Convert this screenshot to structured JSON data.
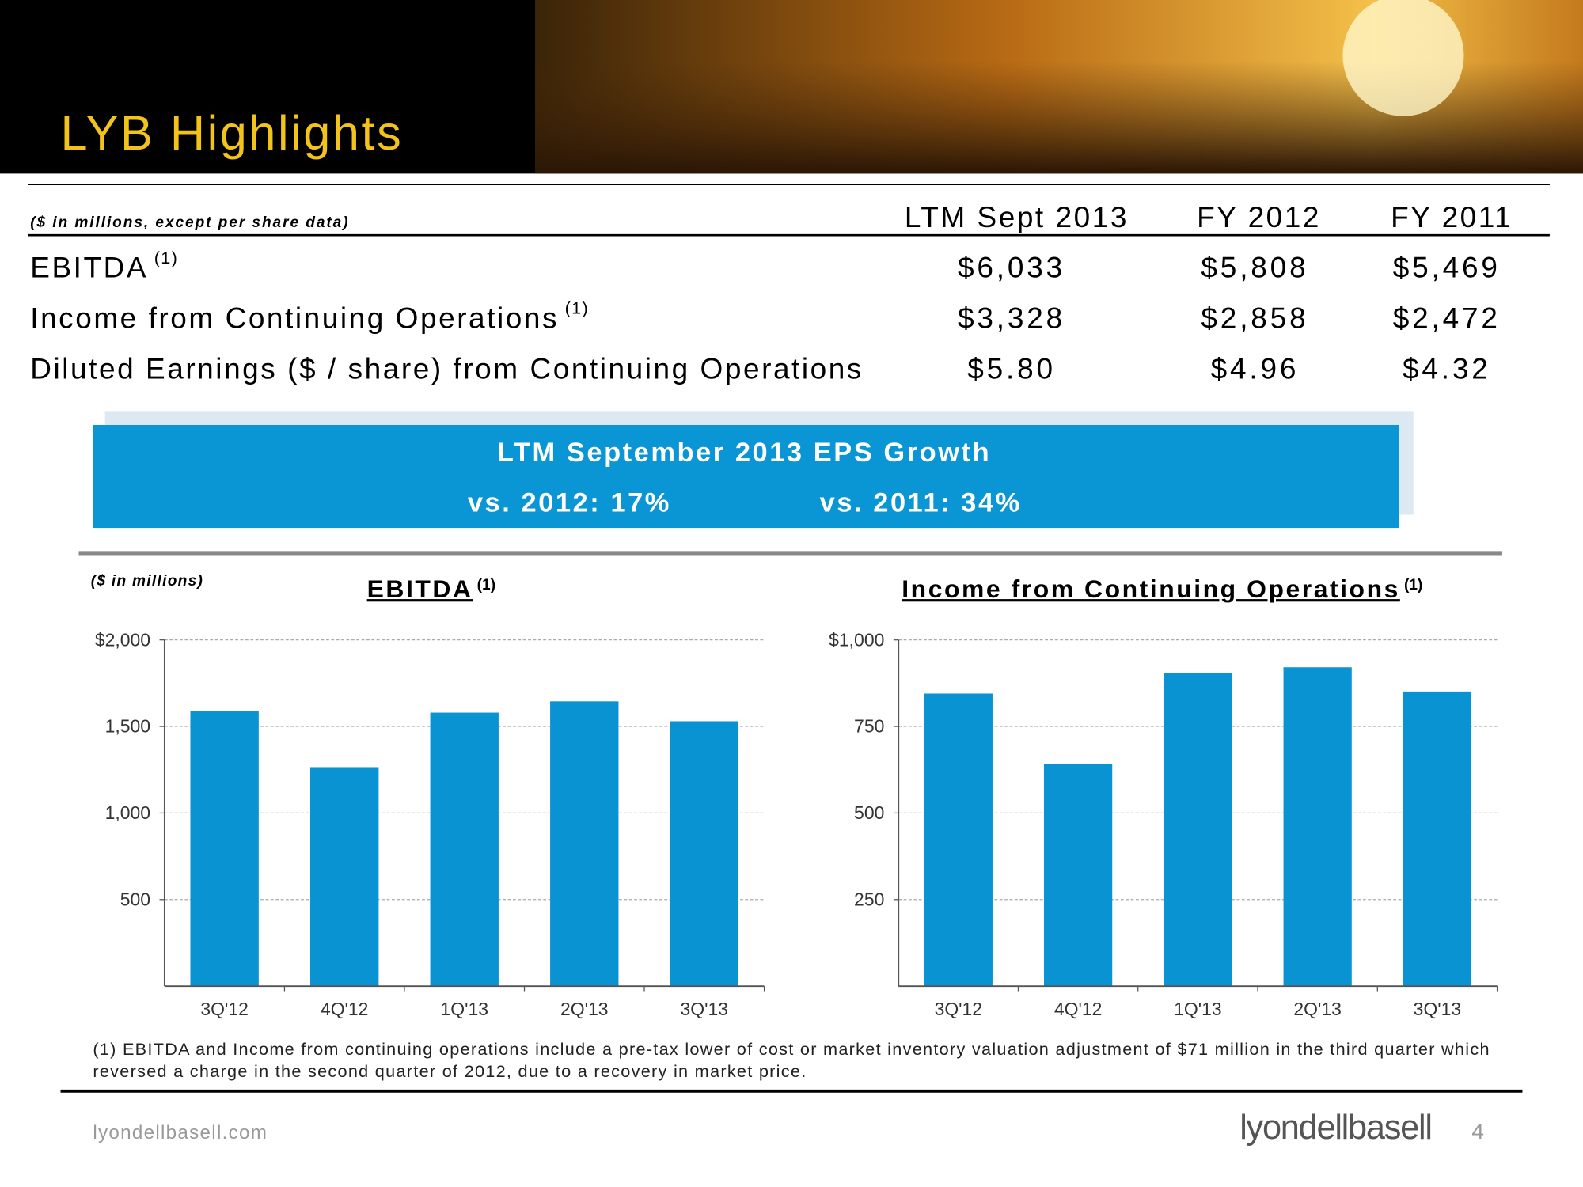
{
  "header": {
    "title": "LYB Highlights"
  },
  "table": {
    "caption": "($ in millions, except per share data)",
    "columns": [
      "LTM Sept 2013",
      "FY 2012",
      "FY 2011"
    ],
    "rows": [
      {
        "label": "EBITDA",
        "marker": "(1)",
        "values": [
          "$6,033",
          "$5,808",
          "$5,469"
        ]
      },
      {
        "label": "Income from Continuing Operations",
        "marker": "(1)",
        "values": [
          "$3,328",
          "$2,858",
          "$2,472"
        ]
      },
      {
        "label": "Diluted Earnings ($ / share) from Continuing Operations",
        "values": [
          "$5.80",
          "$4.96",
          "$4.32"
        ]
      }
    ]
  },
  "callout": {
    "title": "LTM September 2013 EPS Growth",
    "items": [
      "vs. 2012: 17%",
      "vs. 2011: 34%"
    ]
  },
  "charts_unit": "($ in millions)",
  "chart_data": [
    {
      "type": "bar",
      "title": "EBITDA",
      "title_marker": "(1)",
      "categories": [
        "3Q'12",
        "4Q'12",
        "1Q'13",
        "2Q'13",
        "3Q'13"
      ],
      "values": [
        1590,
        1265,
        1580,
        1645,
        1530
      ],
      "color": "#0a93d3",
      "ylim": [
        0,
        2000
      ],
      "yticks": [
        {
          "value": 500,
          "label": "500"
        },
        {
          "value": 1000,
          "label": "1,000"
        },
        {
          "value": 1500,
          "label": "1,500"
        },
        {
          "value": 2000,
          "label": "$2,000"
        }
      ],
      "grid": true
    },
    {
      "type": "bar",
      "title": "Income from Continuing Operations",
      "title_marker": "(1)",
      "categories": [
        "3Q'12",
        "4Q'12",
        "1Q'13",
        "2Q'13",
        "3Q'13"
      ],
      "values": [
        845,
        641,
        904,
        921,
        851
      ],
      "color": "#0a93d3",
      "ylim": [
        0,
        1000
      ],
      "yticks": [
        250,
        500,
        750,
        {
          "value": 1000,
          "label": "$1,000"
        }
      ],
      "grid": true
    }
  ],
  "footnote": {
    "lines": [
      "(1) EBITDA and Income from continuing operations include a pre-tax lower of cost or market inventory valuation adjustment of $71 million in the third quarter which",
      "reversed a charge in the second quarter of 2012, due to a recovery in market price."
    ]
  },
  "footer": {
    "url": "lyondellbasell.com",
    "logo": "lyondellbasell",
    "page": "4"
  }
}
